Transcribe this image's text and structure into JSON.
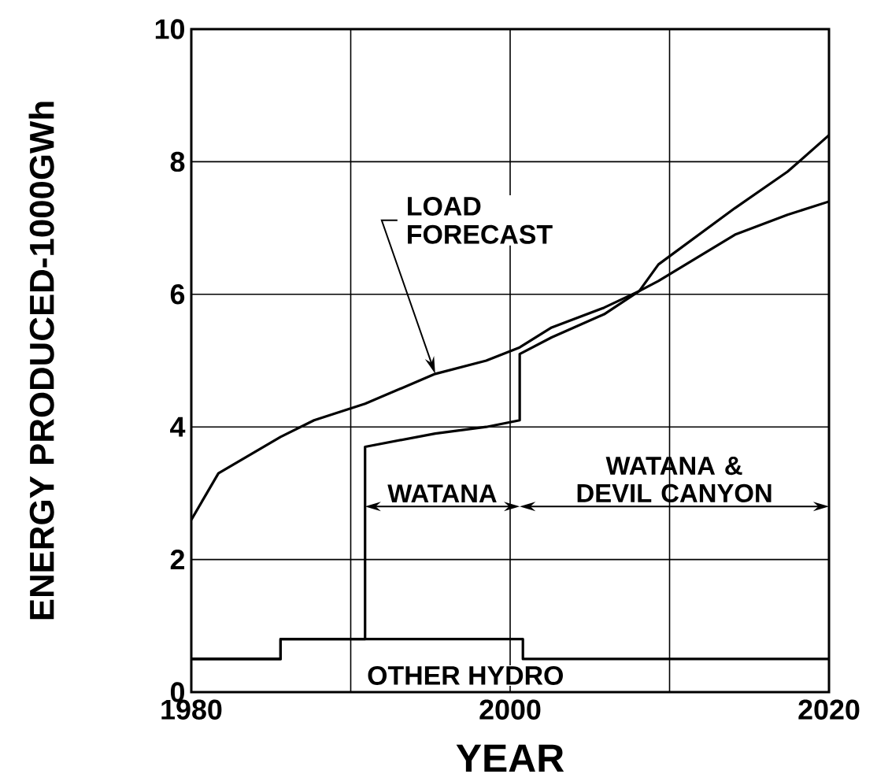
{
  "chart_data": {
    "type": "line",
    "xlabel": "YEAR",
    "ylabel": "ENERGY PRODUCED-1000GWh",
    "xlim": [
      1980,
      2020
    ],
    "xticks": [
      1980,
      {
        "value": 1990,
        "label": null
      },
      2000,
      {
        "value": 2010,
        "label": null
      },
      2020
    ],
    "ylim": [
      0,
      10
    ],
    "yticks": [
      0,
      2,
      4,
      6,
      8,
      10
    ],
    "grid": true,
    "series": [
      {
        "name": "LOAD FORECAST",
        "color": "#000000",
        "x": [
          1980,
          1981.7,
          1985.6,
          1987.7,
          1990.9,
          1995.3,
          1998.5,
          2000.6,
          2002.6,
          2005.9,
          2008.1,
          2009.3,
          2014.1,
          2017.4,
          2020
        ],
        "values": [
          2.6,
          3.3,
          3.85,
          4.1,
          4.35,
          4.8,
          5.0,
          5.2,
          5.5,
          5.8,
          6.05,
          6.45,
          7.3,
          7.85,
          8.4
        ]
      },
      {
        "color": "#000000",
        "x": [
          1980,
          1985.6,
          1985.6,
          1990.9,
          1990.9,
          1995.3,
          1998.5,
          2000.6,
          2000.6,
          2002.6,
          2005.9,
          2008.1,
          2009.3,
          2014.1,
          2017.4,
          2020
        ],
        "values": [
          0.5,
          0.5,
          0.8,
          0.8,
          3.7,
          3.9,
          4.0,
          4.1,
          5.1,
          5.35,
          5.7,
          6.05,
          6.2,
          6.9,
          7.2,
          7.4
        ]
      },
      {
        "color": "#000000",
        "x": [
          1980,
          1985.6,
          1985.6,
          2000.8,
          2000.8,
          2020
        ],
        "values": [
          0.5,
          0.5,
          0.8,
          0.8,
          0.5,
          0.5
        ]
      }
    ],
    "annotations": [
      "OTHER HYDRO",
      "WATANA",
      "WATANA & DEVIL CANYON"
    ]
  }
}
